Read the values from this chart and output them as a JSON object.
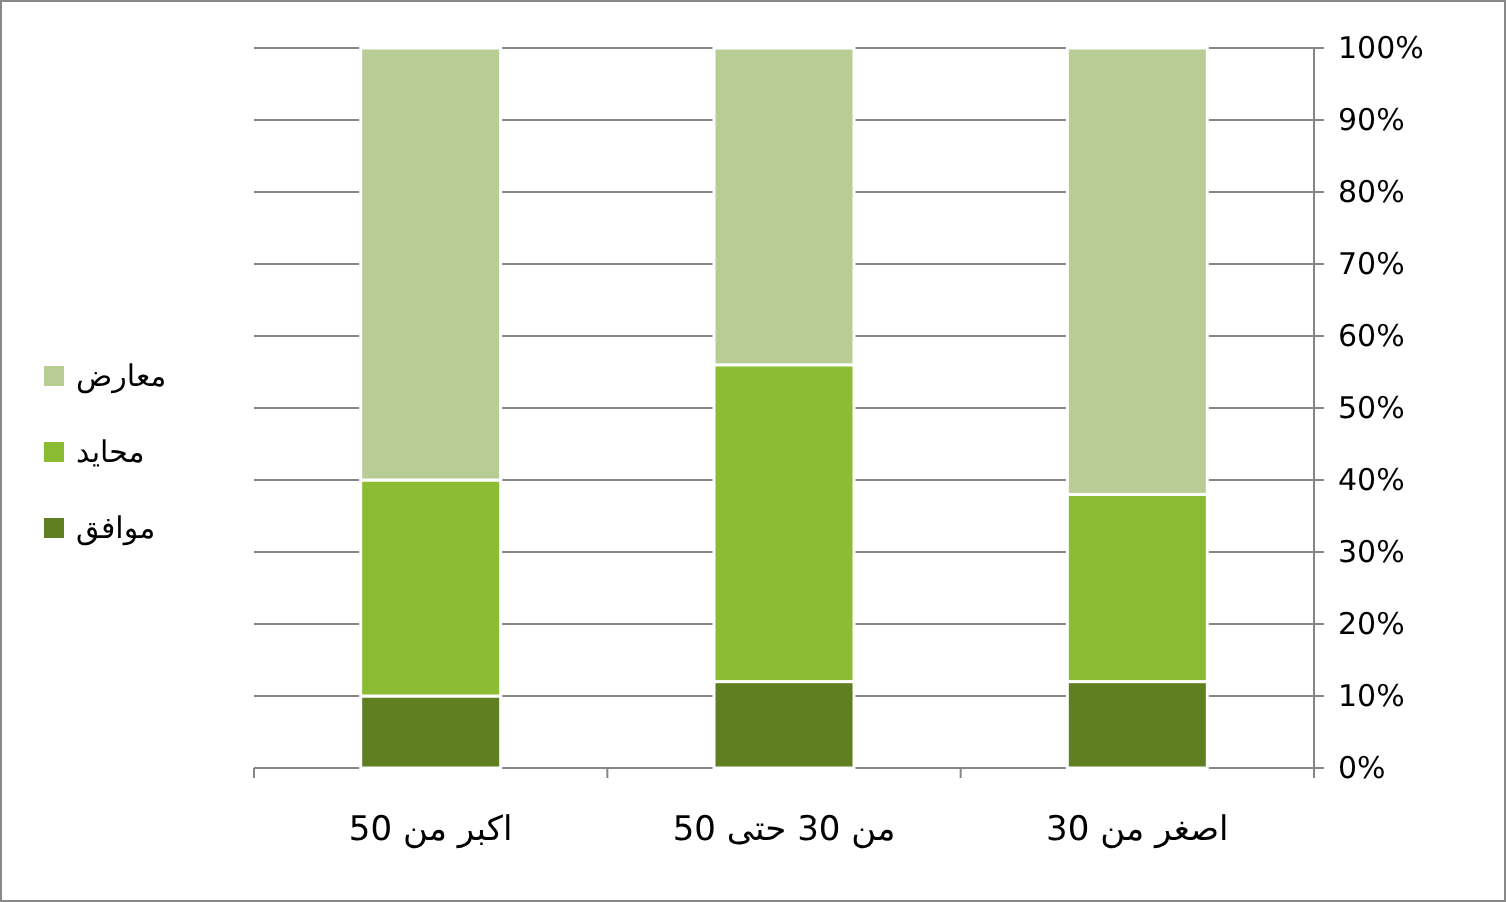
{
  "chart_data": {
    "type": "bar",
    "stacked": true,
    "categories": [
      "اكبر من 50",
      "من 30 حتى 50",
      "اصغر من 30"
    ],
    "series": [
      {
        "name": "موافق",
        "color": "#5f7f20",
        "values": [
          10,
          12,
          12
        ]
      },
      {
        "name": "محايد",
        "color": "#8cbb34",
        "values": [
          30,
          44,
          26
        ]
      },
      {
        "name": "معارض",
        "color": "#b8cc94",
        "values": [
          60,
          44,
          62
        ]
      }
    ],
    "ylim": [
      0,
      100
    ],
    "yticks": [
      {
        "value": 0,
        "label": "0%"
      },
      {
        "value": 10,
        "label": "10%"
      },
      {
        "value": 20,
        "label": "20%"
      },
      {
        "value": 30,
        "label": "30%"
      },
      {
        "value": 40,
        "label": "40%"
      },
      {
        "value": 50,
        "label": "50%"
      },
      {
        "value": 60,
        "label": "60%"
      },
      {
        "value": 70,
        "label": "70%"
      },
      {
        "value": 80,
        "label": "80%"
      },
      {
        "value": 90,
        "label": "90%"
      },
      {
        "value": 100,
        "label": "100%"
      }
    ],
    "grid": "y",
    "legend": "left"
  }
}
